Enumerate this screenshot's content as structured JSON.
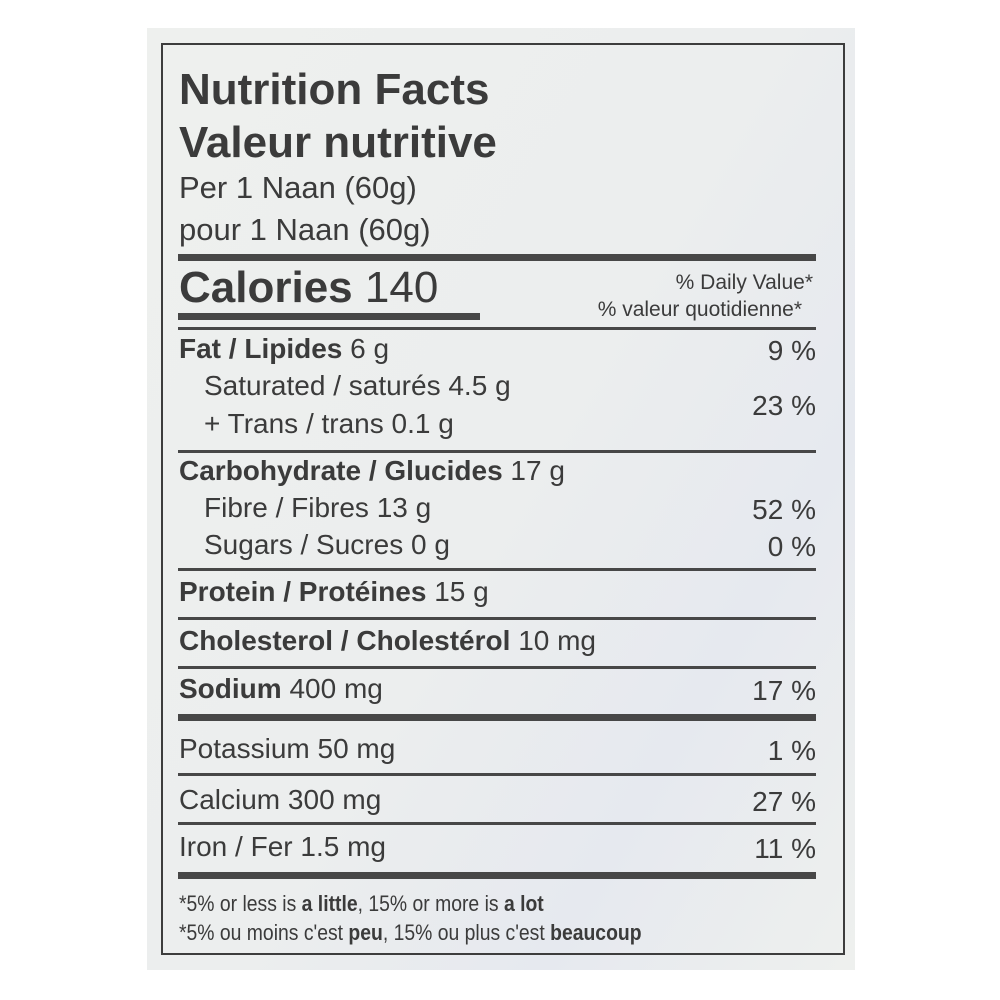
{
  "label": {
    "title_en": "Nutrition Facts",
    "title_fr": "Valeur nutritive",
    "serving_en": "Per 1 Naan (60g)",
    "serving_fr": "pour 1 Naan (60g)",
    "calories_label": "Calories",
    "calories_value": "140",
    "dv_header_en": "% Daily Value*",
    "dv_header_fr": "% valeur quotidienne*",
    "rows": [
      {
        "name": "Fat / Lipides",
        "amount": "6 g",
        "dv": "9 %"
      },
      {
        "name": "Saturated / saturés",
        "amount": "4.5 g"
      },
      {
        "name": "+ Trans / trans",
        "amount": "0.1 g",
        "dv": "23 %"
      },
      {
        "name": "Carbohydrate / Glucides",
        "amount": "17 g"
      },
      {
        "name": "Fibre / Fibres",
        "amount": "13 g",
        "dv": "52 %"
      },
      {
        "name": "Sugars / Sucres",
        "amount": "0 g",
        "dv": "0 %"
      },
      {
        "name": "Protein / Protéines",
        "amount": "15 g"
      },
      {
        "name": "Cholesterol / Cholestérol",
        "amount": "10 mg"
      },
      {
        "name": "Sodium",
        "amount": "400 mg",
        "dv": "17 %"
      },
      {
        "name": "Potassium",
        "amount": "50 mg",
        "dv": "1 %"
      },
      {
        "name": "Calcium",
        "amount": "300 mg",
        "dv": "27 %"
      },
      {
        "name": "Iron / Fer",
        "amount": "1.5 mg",
        "dv": "11 %"
      }
    ],
    "footnote_en": {
      "a": "*5% or less is ",
      "b": "a little",
      "c": ", 15% or more is ",
      "d": "a lot"
    },
    "footnote_fr": {
      "a": "*5% ou moins c'est ",
      "b": "peu",
      "c": ", 15% ou plus c'est ",
      "d": "beaucoup"
    }
  }
}
